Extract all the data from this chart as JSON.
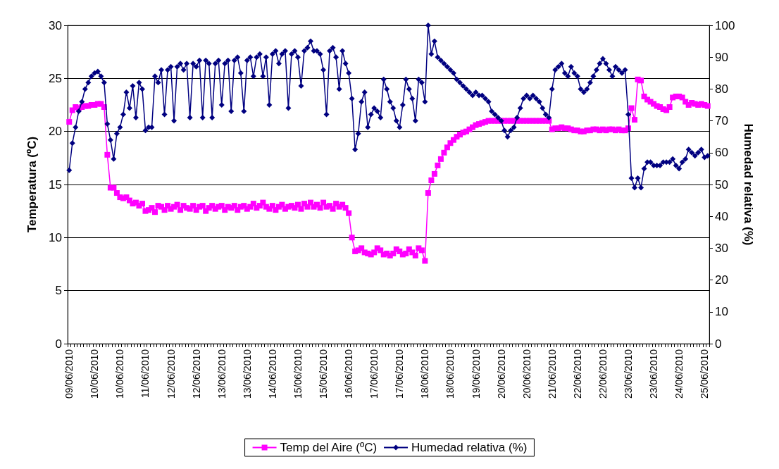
{
  "chart_data": {
    "type": "line",
    "xlabel": null,
    "categories": [
      "09/06/2010",
      null,
      null,
      null,
      null,
      null,
      null,
      null,
      "10/06/2010",
      null,
      null,
      null,
      null,
      null,
      null,
      null,
      "10/06/2010",
      null,
      null,
      null,
      null,
      null,
      null,
      null,
      "11/06/2010",
      null,
      null,
      null,
      null,
      null,
      null,
      null,
      "12/06/2010",
      null,
      null,
      null,
      null,
      null,
      null,
      null,
      "12/06/2010",
      null,
      null,
      null,
      null,
      null,
      null,
      null,
      "13/06/2010",
      null,
      null,
      null,
      null,
      null,
      null,
      null,
      "13/06/2010",
      null,
      null,
      null,
      null,
      null,
      null,
      null,
      "14/06/2010",
      null,
      null,
      null,
      null,
      null,
      null,
      null,
      "15/06/2010",
      null,
      null,
      null,
      null,
      null,
      null,
      null,
      "15/06/2010",
      null,
      null,
      null,
      null,
      null,
      null,
      null,
      "16/06/2010",
      null,
      null,
      null,
      null,
      null,
      null,
      null,
      "17/06/2010",
      null,
      null,
      null,
      null,
      null,
      null,
      null,
      "17/06/2010",
      null,
      null,
      null,
      null,
      null,
      null,
      null,
      "18/06/2010",
      null,
      null,
      null,
      null,
      null,
      null,
      null,
      "18/06/2010",
      null,
      null,
      null,
      null,
      null,
      null,
      null,
      "19/06/2010",
      null,
      null,
      null,
      null,
      null,
      null,
      null,
      "20/06/2010",
      null,
      null,
      null,
      null,
      null,
      null,
      null,
      "20/06/2010",
      null,
      null,
      null,
      null,
      null,
      null,
      null,
      "21/06/2010",
      null,
      null,
      null,
      null,
      null,
      null,
      null,
      "22/06/2010",
      null,
      null,
      null,
      null,
      null,
      null,
      null,
      "22/06/2010",
      null,
      null,
      null,
      null,
      null,
      null,
      null,
      "23/06/2010",
      null,
      null,
      null,
      null,
      null,
      null,
      null,
      "23/06/2010",
      null,
      null,
      null,
      null,
      null,
      null,
      null,
      "24/06/2010",
      null,
      null,
      null,
      null,
      null,
      null,
      null,
      "25/06/2010",
      null
    ],
    "ylabel": "Temperatura (ºC)",
    "y2label": "Humedad relativa (%)",
    "ylim": [
      0,
      30
    ],
    "yticks": [
      0,
      5,
      10,
      15,
      20,
      25,
      30
    ],
    "y2lim": [
      0,
      100
    ],
    "y2ticks": [
      0,
      10,
      20,
      30,
      40,
      50,
      60,
      70,
      80,
      90,
      100
    ],
    "grid": "y",
    "legend": "bottom",
    "series": [
      {
        "name": "Temp del Aire (ºC)",
        "color": "#ff00ff",
        "marker": "square",
        "values": [
          20.9,
          22,
          22.3,
          22.2,
          22.3,
          22.4,
          22.4,
          22.5,
          22.5,
          22.6,
          22.6,
          22.3,
          17.8,
          14.7,
          14.7,
          14.2,
          13.8,
          13.7,
          13.8,
          13.5,
          13.2,
          13.3,
          13.0,
          13.2,
          12.5,
          12.6,
          12.8,
          12.4,
          13.0,
          12.9,
          12.6,
          13.0,
          12.7,
          12.9,
          13.1,
          12.6,
          13.0,
          12.8,
          12.7,
          13.0,
          12.6,
          12.9,
          13.0,
          12.5,
          12.8,
          13.0,
          12.7,
          12.9,
          13.0,
          12.6,
          12.9,
          12.8,
          13.0,
          12.6,
          12.9,
          13.0,
          12.7,
          12.9,
          13.2,
          12.8,
          13.0,
          13.3,
          12.9,
          12.7,
          13.0,
          12.6,
          12.9,
          13.1,
          12.7,
          12.9,
          13.0,
          12.8,
          13.1,
          12.7,
          13.2,
          12.9,
          13.3,
          12.9,
          13.1,
          12.8,
          13.3,
          12.9,
          13.0,
          12.7,
          13.2,
          12.9,
          13.1,
          12.8,
          12.3,
          10.0,
          8.7,
          8.8,
          9.0,
          8.6,
          8.5,
          8.4,
          8.6,
          9.0,
          8.8,
          8.4,
          8.5,
          8.3,
          8.5,
          8.9,
          8.7,
          8.4,
          8.5,
          8.9,
          8.6,
          8.3,
          9.0,
          8.8,
          7.8,
          14.2,
          15.4,
          16.0,
          16.8,
          17.4,
          18.0,
          18.5,
          18.9,
          19.2,
          19.5,
          19.7,
          19.9,
          20.0,
          20.2,
          20.4,
          20.6,
          20.7,
          20.8,
          20.9,
          21.0,
          21.0,
          21.0,
          21.0,
          21.0,
          21.0,
          21.0,
          21.0,
          21.0,
          21.0,
          21.0,
          21.0,
          21.0,
          21.0,
          21.0,
          21.0,
          21.0,
          21.0,
          21.0,
          21.0,
          20.2,
          20.3,
          20.3,
          20.4,
          20.3,
          20.3,
          20.2,
          20.1,
          20.1,
          20.0,
          20.0,
          20.1,
          20.1,
          20.2,
          20.2,
          20.1,
          20.2,
          20.1,
          20.2,
          20.2,
          20.1,
          20.2,
          20.1,
          20.1,
          20.3,
          22.2,
          21.1,
          24.9,
          24.8,
          23.3,
          23.0,
          22.8,
          22.6,
          22.4,
          22.3,
          22.1,
          22.0,
          22.3,
          23.2,
          23.3,
          23.3,
          23.2,
          22.8,
          22.5,
          22.7,
          22.6,
          22.5,
          22.6,
          22.5,
          22.4
        ]
      },
      {
        "name": "Humedad relativa (%)",
        "color": "#000080",
        "marker": "diamond",
        "axis": "y2",
        "values": [
          54.5,
          63,
          68,
          73,
          76,
          80,
          82,
          84,
          85,
          85.5,
          84,
          82,
          69,
          64,
          58,
          66,
          68,
          72,
          79,
          74,
          81,
          71,
          82,
          80,
          67,
          68,
          68,
          84,
          82,
          86,
          72,
          86,
          87,
          70,
          87,
          88,
          86,
          88,
          71,
          88,
          87,
          89,
          71,
          89,
          88,
          71,
          88,
          89,
          75,
          88,
          89,
          73,
          89,
          90,
          85,
          73,
          89,
          90,
          84,
          90,
          91,
          84,
          90,
          75,
          91,
          92,
          88,
          91,
          92,
          74,
          91,
          92,
          90,
          81,
          92,
          93,
          95,
          92,
          92,
          91,
          86,
          72,
          92,
          93,
          90,
          80,
          92,
          88,
          85,
          77,
          61,
          66,
          76,
          79,
          68,
          72,
          74,
          73,
          71,
          83,
          80,
          76,
          74,
          70,
          68,
          75,
          83,
          80,
          77,
          70,
          83,
          82,
          76,
          100,
          91,
          95,
          90,
          89,
          88,
          87,
          86,
          85,
          83,
          82,
          81,
          80,
          79,
          78,
          79,
          78,
          78,
          77,
          76,
          73,
          72,
          71,
          70,
          67,
          65,
          67,
          68,
          71,
          74,
          77,
          78,
          77,
          78,
          77,
          76,
          74,
          72,
          71,
          80,
          86,
          87,
          88,
          85,
          84,
          87,
          85,
          84,
          80,
          79,
          80,
          82,
          84,
          86,
          88,
          89.5,
          88,
          86,
          84,
          87,
          86,
          85,
          86,
          72,
          52,
          49,
          52,
          49,
          55,
          57,
          57,
          56,
          56,
          56,
          57,
          57,
          57,
          58,
          56,
          55,
          57,
          58,
          61,
          60,
          59,
          60,
          61,
          58.5,
          59
        ]
      }
    ]
  }
}
